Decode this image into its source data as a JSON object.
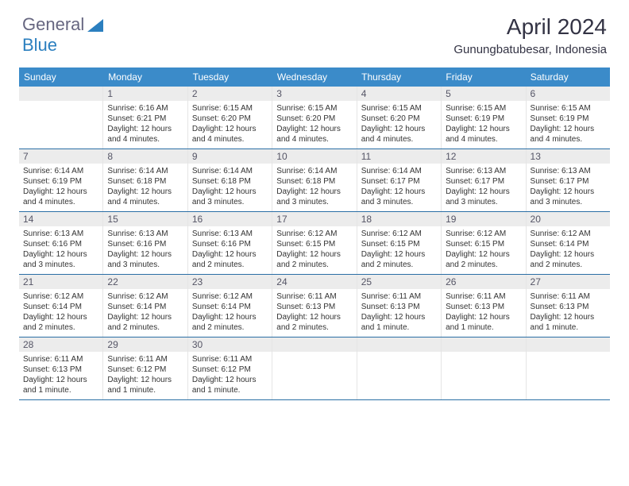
{
  "logo": {
    "word1": "General",
    "word2": "Blue",
    "accent_color": "#2b7fbf",
    "text_color": "#666680"
  },
  "title": "April 2024",
  "location": "Gunungbatubesar, Indonesia",
  "colors": {
    "header_bg": "#3b8bc9",
    "header_text": "#ffffff",
    "daynum_bg": "#ececec",
    "border": "#2b6fa5"
  },
  "day_names": [
    "Sunday",
    "Monday",
    "Tuesday",
    "Wednesday",
    "Thursday",
    "Friday",
    "Saturday"
  ],
  "weeks": [
    [
      {
        "day": "",
        "lines": []
      },
      {
        "day": "1",
        "lines": [
          "Sunrise: 6:16 AM",
          "Sunset: 6:21 PM",
          "Daylight: 12 hours",
          "and 4 minutes."
        ]
      },
      {
        "day": "2",
        "lines": [
          "Sunrise: 6:15 AM",
          "Sunset: 6:20 PM",
          "Daylight: 12 hours",
          "and 4 minutes."
        ]
      },
      {
        "day": "3",
        "lines": [
          "Sunrise: 6:15 AM",
          "Sunset: 6:20 PM",
          "Daylight: 12 hours",
          "and 4 minutes."
        ]
      },
      {
        "day": "4",
        "lines": [
          "Sunrise: 6:15 AM",
          "Sunset: 6:20 PM",
          "Daylight: 12 hours",
          "and 4 minutes."
        ]
      },
      {
        "day": "5",
        "lines": [
          "Sunrise: 6:15 AM",
          "Sunset: 6:19 PM",
          "Daylight: 12 hours",
          "and 4 minutes."
        ]
      },
      {
        "day": "6",
        "lines": [
          "Sunrise: 6:15 AM",
          "Sunset: 6:19 PM",
          "Daylight: 12 hours",
          "and 4 minutes."
        ]
      }
    ],
    [
      {
        "day": "7",
        "lines": [
          "Sunrise: 6:14 AM",
          "Sunset: 6:19 PM",
          "Daylight: 12 hours",
          "and 4 minutes."
        ]
      },
      {
        "day": "8",
        "lines": [
          "Sunrise: 6:14 AM",
          "Sunset: 6:18 PM",
          "Daylight: 12 hours",
          "and 4 minutes."
        ]
      },
      {
        "day": "9",
        "lines": [
          "Sunrise: 6:14 AM",
          "Sunset: 6:18 PM",
          "Daylight: 12 hours",
          "and 3 minutes."
        ]
      },
      {
        "day": "10",
        "lines": [
          "Sunrise: 6:14 AM",
          "Sunset: 6:18 PM",
          "Daylight: 12 hours",
          "and 3 minutes."
        ]
      },
      {
        "day": "11",
        "lines": [
          "Sunrise: 6:14 AM",
          "Sunset: 6:17 PM",
          "Daylight: 12 hours",
          "and 3 minutes."
        ]
      },
      {
        "day": "12",
        "lines": [
          "Sunrise: 6:13 AM",
          "Sunset: 6:17 PM",
          "Daylight: 12 hours",
          "and 3 minutes."
        ]
      },
      {
        "day": "13",
        "lines": [
          "Sunrise: 6:13 AM",
          "Sunset: 6:17 PM",
          "Daylight: 12 hours",
          "and 3 minutes."
        ]
      }
    ],
    [
      {
        "day": "14",
        "lines": [
          "Sunrise: 6:13 AM",
          "Sunset: 6:16 PM",
          "Daylight: 12 hours",
          "and 3 minutes."
        ]
      },
      {
        "day": "15",
        "lines": [
          "Sunrise: 6:13 AM",
          "Sunset: 6:16 PM",
          "Daylight: 12 hours",
          "and 3 minutes."
        ]
      },
      {
        "day": "16",
        "lines": [
          "Sunrise: 6:13 AM",
          "Sunset: 6:16 PM",
          "Daylight: 12 hours",
          "and 2 minutes."
        ]
      },
      {
        "day": "17",
        "lines": [
          "Sunrise: 6:12 AM",
          "Sunset: 6:15 PM",
          "Daylight: 12 hours",
          "and 2 minutes."
        ]
      },
      {
        "day": "18",
        "lines": [
          "Sunrise: 6:12 AM",
          "Sunset: 6:15 PM",
          "Daylight: 12 hours",
          "and 2 minutes."
        ]
      },
      {
        "day": "19",
        "lines": [
          "Sunrise: 6:12 AM",
          "Sunset: 6:15 PM",
          "Daylight: 12 hours",
          "and 2 minutes."
        ]
      },
      {
        "day": "20",
        "lines": [
          "Sunrise: 6:12 AM",
          "Sunset: 6:14 PM",
          "Daylight: 12 hours",
          "and 2 minutes."
        ]
      }
    ],
    [
      {
        "day": "21",
        "lines": [
          "Sunrise: 6:12 AM",
          "Sunset: 6:14 PM",
          "Daylight: 12 hours",
          "and 2 minutes."
        ]
      },
      {
        "day": "22",
        "lines": [
          "Sunrise: 6:12 AM",
          "Sunset: 6:14 PM",
          "Daylight: 12 hours",
          "and 2 minutes."
        ]
      },
      {
        "day": "23",
        "lines": [
          "Sunrise: 6:12 AM",
          "Sunset: 6:14 PM",
          "Daylight: 12 hours",
          "and 2 minutes."
        ]
      },
      {
        "day": "24",
        "lines": [
          "Sunrise: 6:11 AM",
          "Sunset: 6:13 PM",
          "Daylight: 12 hours",
          "and 2 minutes."
        ]
      },
      {
        "day": "25",
        "lines": [
          "Sunrise: 6:11 AM",
          "Sunset: 6:13 PM",
          "Daylight: 12 hours",
          "and 1 minute."
        ]
      },
      {
        "day": "26",
        "lines": [
          "Sunrise: 6:11 AM",
          "Sunset: 6:13 PM",
          "Daylight: 12 hours",
          "and 1 minute."
        ]
      },
      {
        "day": "27",
        "lines": [
          "Sunrise: 6:11 AM",
          "Sunset: 6:13 PM",
          "Daylight: 12 hours",
          "and 1 minute."
        ]
      }
    ],
    [
      {
        "day": "28",
        "lines": [
          "Sunrise: 6:11 AM",
          "Sunset: 6:13 PM",
          "Daylight: 12 hours",
          "and 1 minute."
        ]
      },
      {
        "day": "29",
        "lines": [
          "Sunrise: 6:11 AM",
          "Sunset: 6:12 PM",
          "Daylight: 12 hours",
          "and 1 minute."
        ]
      },
      {
        "day": "30",
        "lines": [
          "Sunrise: 6:11 AM",
          "Sunset: 6:12 PM",
          "Daylight: 12 hours",
          "and 1 minute."
        ]
      },
      {
        "day": "",
        "lines": []
      },
      {
        "day": "",
        "lines": []
      },
      {
        "day": "",
        "lines": []
      },
      {
        "day": "",
        "lines": []
      }
    ]
  ]
}
